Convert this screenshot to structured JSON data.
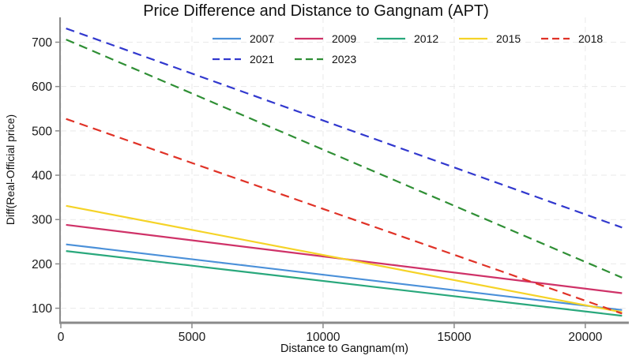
{
  "chart_data": {
    "type": "line",
    "title": "Price Difference and Distance to Gangnam (APT)",
    "xlabel": "Distance to Gangnam(m)",
    "ylabel": "Diff(Real-Official price)",
    "xlim": [
      0,
      21600
    ],
    "ylim": [
      69,
      756
    ],
    "x_ticks": [
      0,
      5000,
      10000,
      15000,
      20000
    ],
    "y_ticks": [
      100,
      200,
      300,
      400,
      500,
      600,
      700
    ],
    "grid": true,
    "grid_style": "dashed-light-gray",
    "legend_position": "top-center, two rows, no frame",
    "legend_rows": [
      [
        "2007",
        "2009",
        "2012",
        "2015",
        "2018"
      ],
      [
        "2021",
        "2023"
      ]
    ],
    "series": [
      {
        "name": "2007",
        "style": "solid",
        "color": "#4a90d9",
        "x": [
          200,
          21400
        ],
        "y": [
          244,
          96
        ]
      },
      {
        "name": "2009",
        "style": "solid",
        "color": "#cf3268",
        "x": [
          200,
          21400
        ],
        "y": [
          288,
          134
        ]
      },
      {
        "name": "2012",
        "style": "solid",
        "color": "#29a87c",
        "x": [
          200,
          21400
        ],
        "y": [
          229,
          83
        ]
      },
      {
        "name": "2015",
        "style": "solid",
        "color": "#f5d327",
        "x": [
          200,
          21400
        ],
        "y": [
          331,
          91
        ]
      },
      {
        "name": "2018",
        "style": "dashed",
        "color": "#e03227",
        "x": [
          200,
          21400
        ],
        "y": [
          527,
          88
        ]
      },
      {
        "name": "2021",
        "style": "dashed",
        "color": "#3138ce",
        "x": [
          200,
          21400
        ],
        "y": [
          731,
          282
        ]
      },
      {
        "name": "2023",
        "style": "dashed",
        "color": "#2f8f35",
        "x": [
          200,
          21400
        ],
        "y": [
          706,
          169
        ]
      }
    ]
  },
  "colors": {
    "axis": "#8a8a8a",
    "grid": "#e9e9e9",
    "tick_text": "#1a1a1a"
  }
}
